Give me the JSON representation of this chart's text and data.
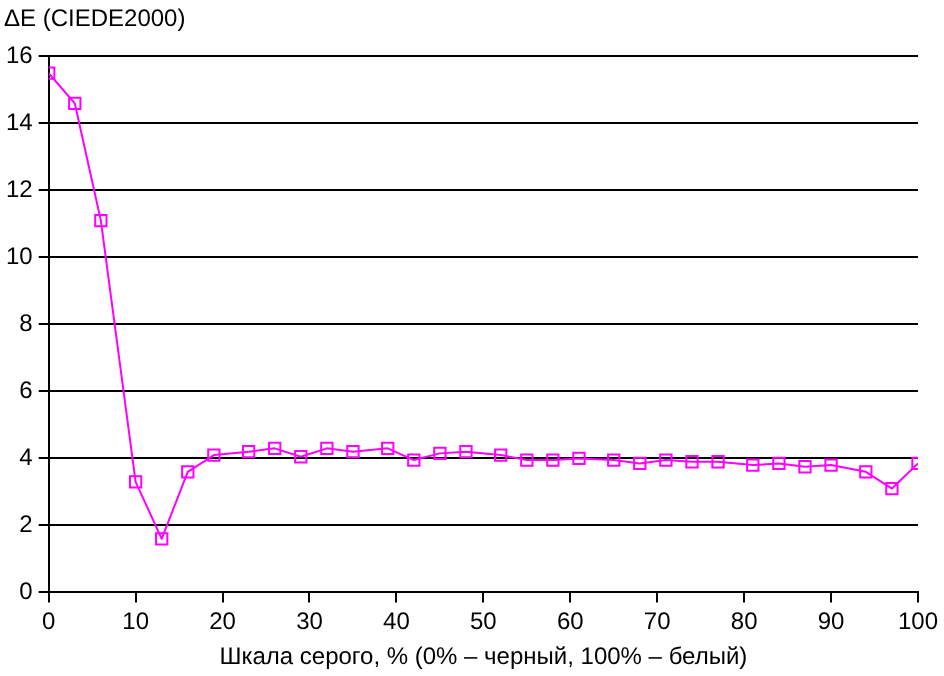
{
  "chart_data": {
    "type": "line",
    "ylabel": "ΔE (CIEDE2000)",
    "xlabel": "Шкала серого, % (0% – черный, 100% – белый)",
    "x": [
      0,
      3,
      6,
      10,
      13,
      16,
      19,
      23,
      26,
      29,
      32,
      35,
      39,
      42,
      45,
      48,
      52,
      55,
      58,
      61,
      65,
      68,
      71,
      74,
      77,
      81,
      84,
      87,
      90,
      94,
      97,
      100
    ],
    "series": [
      {
        "color": "#ff00ff",
        "values": [
          15.5,
          14.6,
          11.1,
          3.3,
          1.6,
          3.6,
          4.1,
          4.2,
          4.3,
          4.05,
          4.3,
          4.2,
          4.3,
          3.95,
          4.15,
          4.2,
          4.1,
          3.95,
          3.95,
          4.0,
          3.95,
          3.85,
          3.95,
          3.9,
          3.9,
          3.8,
          3.85,
          3.75,
          3.8,
          3.6,
          3.1,
          3.85
        ]
      }
    ],
    "xlim": [
      0,
      100
    ],
    "xticks": [
      0,
      10,
      20,
      30,
      40,
      50,
      60,
      70,
      80,
      90,
      100
    ],
    "ylim": [
      0,
      16
    ],
    "yticks": [
      0,
      2,
      4,
      6,
      8,
      10,
      12,
      14,
      16
    ],
    "grid": "y",
    "marker": "square",
    "line_style": "solid",
    "legend": false
  }
}
